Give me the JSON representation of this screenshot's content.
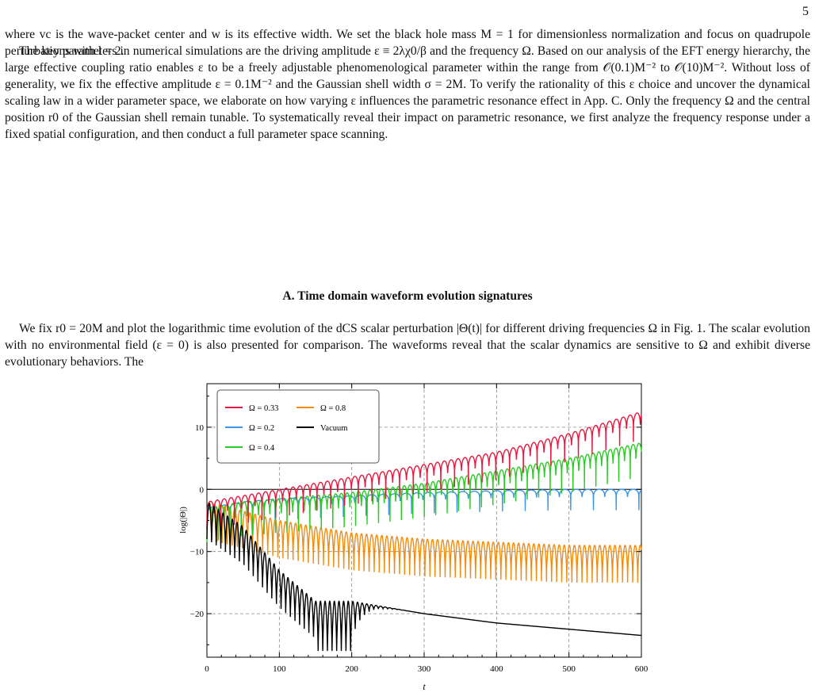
{
  "page_number": "5",
  "paragraphs": {
    "p1": "where vc is the wave-packet center and w is its effective width. We set the black hole mass M = 1 for dimensionless normalization and focus on quadrupole perturbations with l = 2.",
    "p2": "The key parameters in numerical simulations are the driving amplitude ε ≡ 2λχ0/β and the frequency Ω. Based on our analysis of the EFT energy hierarchy, the large effective coupling ratio enables ε to be a freely adjustable phenomenological parameter within the range from 𝒪(0.1)M⁻² to 𝒪(10)M⁻². Without loss of generality, we fix the effective amplitude ε = 0.1M⁻² and the Gaussian shell width σ = 2M. To verify the rationality of this ε choice and uncover the dynamical scaling law in a wider parameter space, we elaborate on how varying ε influences the parametric resonance effect in App. C. Only the frequency Ω and the central position r0 of the Gaussian shell remain tunable. To systematically reveal their impact on parametric resonance, we first analyze the frequency response under a fixed spatial configuration, and then conduct a full parameter space scanning.",
    "p3": "We fix r0 = 20M and plot the logarithmic time evolution of the dCS scalar perturbation |Θ(t)| for different driving frequencies Ω in Fig. 1. The scalar evolution with no environmental field (ε = 0) is also presented for comparison. The waveforms reveal that the scalar dynamics are sensitive to Ω and exhibit diverse evolutionary behaviors. The"
  },
  "section_heading": "A.    Time domain waveform evolution signatures",
  "colors": {
    "omega_033": "#e8173d",
    "omega_08": "#f28c0e",
    "omega_02": "#3b97e6",
    "omega_04": "#26cc20",
    "vacuum": "#000000"
  },
  "chart_data": {
    "type": "line",
    "xlabel": "t",
    "ylabel": "log(|Θ|)",
    "xlim": [
      0,
      600
    ],
    "ylim": [
      -27,
      17
    ],
    "xticks": [
      "0",
      "100",
      "200",
      "300",
      "400",
      "500",
      "600"
    ],
    "yticks": [
      "10",
      "0",
      "−10",
      "−20"
    ],
    "grid": "dashed at x = 100, 200, 300, 400, 500 and y = 10, −10, −20",
    "legend_position": "top-left",
    "legend": [
      "Ω = 0.33",
      "Ω = 0.8",
      "Ω = 0.2",
      "Vacuum",
      "Ω = 0.4"
    ],
    "series": [
      {
        "name": "Ω = 0.33",
        "x": [
          0,
          50,
          100,
          200,
          300,
          400,
          500,
          600
        ],
        "y": [
          -2,
          -1,
          0,
          2,
          4,
          6,
          9,
          12.5
        ]
      },
      {
        "name": "Ω = 0.4",
        "x": [
          0,
          50,
          100,
          200,
          300,
          400,
          500,
          600
        ],
        "y": [
          -3,
          -2,
          -1.5,
          -0.5,
          1,
          3,
          5,
          7.5
        ]
      },
      {
        "name": "Ω = 0.2",
        "x": [
          0,
          50,
          100,
          200,
          300,
          400,
          500,
          600
        ],
        "y": [
          -3,
          -2,
          -1.5,
          -1,
          -0.5,
          -0.2,
          0,
          0
        ]
      },
      {
        "name": "Ω = 0.8",
        "x": [
          0,
          50,
          100,
          200,
          300,
          400,
          500,
          600
        ],
        "y": [
          -2,
          -3.5,
          -5,
          -7,
          -8,
          -8.5,
          -9,
          -9
        ]
      },
      {
        "name": "Vacuum",
        "x": [
          0,
          50,
          100,
          150,
          200,
          300,
          400,
          500,
          600
        ],
        "y": [
          -2,
          -6,
          -13,
          -18,
          -18,
          -20,
          -21.5,
          -22.5,
          -23.5
        ]
      }
    ]
  }
}
